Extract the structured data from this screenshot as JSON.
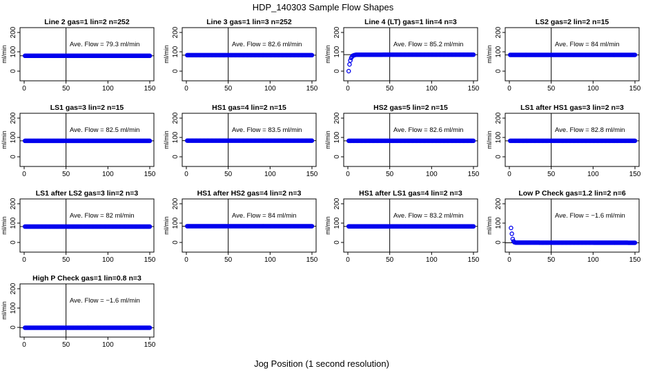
{
  "figure": {
    "title": "HDP_140303  Sample Flow Shapes",
    "xlabel": "Jog Position (1 second resolution)"
  },
  "colors": {
    "points": "#0000ee",
    "axes": "#000000",
    "background": "#ffffff"
  },
  "chart_data": [
    {
      "type": "scatter",
      "title": "Line 2 gas=1 lin=2 n=252",
      "annotation": "Ave. Flow =  79.3  ml/min",
      "ylabel": "ml/min",
      "xlim": [
        0,
        150
      ],
      "ylim": [
        -50,
        225
      ],
      "xticks": [
        0,
        50,
        100,
        150
      ],
      "yticks": [
        0,
        100,
        200
      ],
      "vline": 50,
      "hline": 79.3,
      "series": [
        {
          "points": [
            [
              1,
              79.3
            ],
            [
              150,
              79.3
            ]
          ]
        }
      ]
    },
    {
      "type": "scatter",
      "title": "Line 3 gas=1 lin=3 n=252",
      "annotation": "Ave. Flow =  82.6  ml/min",
      "ylabel": "ml/min",
      "xlim": [
        0,
        150
      ],
      "ylim": [
        -50,
        225
      ],
      "xticks": [
        0,
        50,
        100,
        150
      ],
      "yticks": [
        0,
        100,
        200
      ],
      "vline": 50,
      "hline": 82.6,
      "series": [
        {
          "points": [
            [
              1,
              82.6
            ],
            [
              150,
              82.6
            ]
          ]
        }
      ]
    },
    {
      "type": "scatter",
      "title": "Line 4 (LT) gas=1 lin=4 n=3",
      "annotation": "Ave. Flow =  85.2  ml/min",
      "ylabel": "ml/min",
      "xlim": [
        0,
        150
      ],
      "ylim": [
        -50,
        225
      ],
      "xticks": [
        0,
        50,
        100,
        150
      ],
      "yticks": [
        0,
        100,
        200
      ],
      "vline": 50,
      "hline": 85.2,
      "series": [
        {
          "points": [
            [
              1,
              0
            ],
            [
              2,
              35
            ],
            [
              3,
              55
            ],
            [
              4,
              68
            ],
            [
              5,
              75
            ],
            [
              6,
              80
            ],
            [
              8,
              83
            ],
            [
              10,
              85
            ],
            [
              150,
              85.2
            ]
          ]
        }
      ]
    },
    {
      "type": "scatter",
      "title": "LS2 gas=2 lin=2 n=15",
      "annotation": "Ave. Flow =  84  ml/min",
      "ylabel": "ml/min",
      "xlim": [
        0,
        150
      ],
      "ylim": [
        -50,
        225
      ],
      "xticks": [
        0,
        50,
        100,
        150
      ],
      "yticks": [
        0,
        100,
        200
      ],
      "vline": 50,
      "hline": 84,
      "series": [
        {
          "points": [
            [
              1,
              84
            ],
            [
              150,
              84
            ]
          ]
        }
      ]
    },
    {
      "type": "scatter",
      "title": "LS1 gas=3 lin=2 n=15",
      "annotation": "Ave. Flow =  82.5  ml/min",
      "ylabel": "ml/min",
      "xlim": [
        0,
        150
      ],
      "ylim": [
        -50,
        225
      ],
      "xticks": [
        0,
        50,
        100,
        150
      ],
      "yticks": [
        0,
        100,
        200
      ],
      "vline": 50,
      "hline": 82.5,
      "series": [
        {
          "points": [
            [
              1,
              82.5
            ],
            [
              150,
              82.5
            ]
          ]
        }
      ]
    },
    {
      "type": "scatter",
      "title": "HS1 gas=4 lin=2 n=15",
      "annotation": "Ave. Flow =  83.5  ml/min",
      "ylabel": "ml/min",
      "xlim": [
        0,
        150
      ],
      "ylim": [
        -50,
        225
      ],
      "xticks": [
        0,
        50,
        100,
        150
      ],
      "yticks": [
        0,
        100,
        200
      ],
      "vline": 50,
      "hline": 83.5,
      "series": [
        {
          "points": [
            [
              1,
              83.5
            ],
            [
              150,
              83.5
            ]
          ]
        }
      ]
    },
    {
      "type": "scatter",
      "title": "HS2 gas=5 lin=2 n=15",
      "annotation": "Ave. Flow =  82.6  ml/min",
      "ylabel": "ml/min",
      "xlim": [
        0,
        150
      ],
      "ylim": [
        -50,
        225
      ],
      "xticks": [
        0,
        50,
        100,
        150
      ],
      "yticks": [
        0,
        100,
        200
      ],
      "vline": 50,
      "hline": 82.6,
      "series": [
        {
          "points": [
            [
              1,
              82.6
            ],
            [
              150,
              82.6
            ]
          ]
        }
      ]
    },
    {
      "type": "scatter",
      "title": "LS1 after HS1 gas=3 lin=2 n=3",
      "annotation": "Ave. Flow =  82.8  ml/min",
      "ylabel": "ml/min",
      "xlim": [
        0,
        150
      ],
      "ylim": [
        -50,
        225
      ],
      "xticks": [
        0,
        50,
        100,
        150
      ],
      "yticks": [
        0,
        100,
        200
      ],
      "vline": 50,
      "hline": 82.8,
      "series": [
        {
          "points": [
            [
              1,
              82.8
            ],
            [
              150,
              82.8
            ]
          ]
        }
      ]
    },
    {
      "type": "scatter",
      "title": "LS1 after LS2 gas=3 lin=2 n=3",
      "annotation": "Ave. Flow =  82  ml/min",
      "ylabel": "ml/min",
      "xlim": [
        0,
        150
      ],
      "ylim": [
        -50,
        225
      ],
      "xticks": [
        0,
        50,
        100,
        150
      ],
      "yticks": [
        0,
        100,
        200
      ],
      "vline": 50,
      "hline": 82,
      "series": [
        {
          "points": [
            [
              1,
              82
            ],
            [
              150,
              82
            ]
          ]
        }
      ]
    },
    {
      "type": "scatter",
      "title": "HS1 after HS2 gas=4 lin=2 n=3",
      "annotation": "Ave. Flow =  84  ml/min",
      "ylabel": "ml/min",
      "xlim": [
        0,
        150
      ],
      "ylim": [
        -50,
        225
      ],
      "xticks": [
        0,
        50,
        100,
        150
      ],
      "yticks": [
        0,
        100,
        200
      ],
      "vline": 50,
      "hline": 84,
      "series": [
        {
          "points": [
            [
              1,
              84
            ],
            [
              150,
              84
            ]
          ]
        }
      ]
    },
    {
      "type": "scatter",
      "title": "HS1 after LS1 gas=4 lin=2 n=3",
      "annotation": "Ave. Flow =  83.2  ml/min",
      "ylabel": "ml/min",
      "xlim": [
        0,
        150
      ],
      "ylim": [
        -50,
        225
      ],
      "xticks": [
        0,
        50,
        100,
        150
      ],
      "yticks": [
        0,
        100,
        200
      ],
      "vline": 50,
      "hline": 83.2,
      "series": [
        {
          "points": [
            [
              1,
              83.2
            ],
            [
              150,
              83.2
            ]
          ]
        }
      ]
    },
    {
      "type": "scatter",
      "title": "Low P Check gas=1.2 lin=2 n=6",
      "annotation": "Ave. Flow =  −1.6  ml/min",
      "ylabel": "ml/min",
      "xlim": [
        0,
        150
      ],
      "ylim": [
        -50,
        225
      ],
      "xticks": [
        0,
        50,
        100,
        150
      ],
      "yticks": [
        0,
        100,
        200
      ],
      "vline": 50,
      "hline": -1.6,
      "series": [
        {
          "points": [
            [
              2,
              75
            ],
            [
              3,
              45
            ],
            [
              4,
              18
            ],
            [
              5,
              6
            ],
            [
              6,
              1
            ],
            [
              7,
              0
            ],
            [
              8,
              -1
            ],
            [
              150,
              -1.6
            ]
          ]
        }
      ]
    },
    {
      "type": "scatter",
      "title": "High P Check gas=1 lin=0.8 n=3",
      "annotation": "Ave. Flow =  −1.6  ml/min",
      "ylabel": "ml/min",
      "xlim": [
        0,
        150
      ],
      "ylim": [
        -50,
        225
      ],
      "xticks": [
        0,
        50,
        100,
        150
      ],
      "yticks": [
        0,
        100,
        200
      ],
      "vline": 50,
      "hline": -1.6,
      "series": [
        {
          "points": [
            [
              1,
              -1.6
            ],
            [
              150,
              -1.6
            ]
          ]
        }
      ]
    }
  ]
}
